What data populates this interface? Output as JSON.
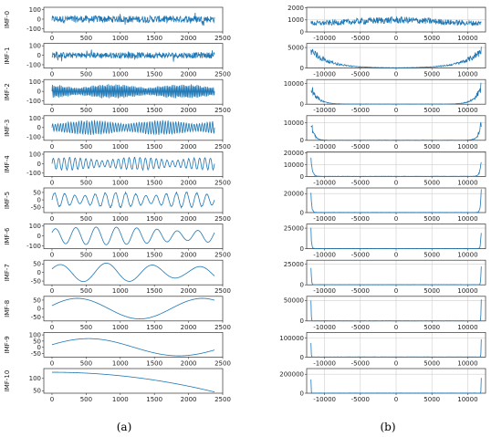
{
  "chart_data": [
    {
      "type": "line",
      "panel_label": "(a)",
      "line_color": "#1f77b4",
      "xticks": [
        "0",
        "500",
        "1000",
        "1500",
        "2000",
        "2500"
      ],
      "x_range": [
        0,
        2380
      ],
      "xlim": [
        -120,
        2500
      ],
      "subplots": [
        {
          "ylabel": "IMF-0",
          "yticks": [
            "100",
            "0",
            "-100"
          ],
          "ylim": [
            -135,
            125
          ],
          "amplitude": 80,
          "pattern": "noise"
        },
        {
          "ylabel": "IMF-1",
          "yticks": [
            "100",
            "0",
            "-100"
          ],
          "ylim": [
            -135,
            125
          ],
          "amplitude": 70,
          "pattern": "noise"
        },
        {
          "ylabel": "IMF-2",
          "yticks": [
            "100",
            "0",
            "-100"
          ],
          "ylim": [
            -135,
            125
          ],
          "amplitude": 80,
          "pattern": "oscillation",
          "periods": 110
        },
        {
          "ylabel": "IMF-3",
          "yticks": [
            "100",
            "0",
            "-100"
          ],
          "ylim": [
            -135,
            125
          ],
          "amplitude": 80,
          "pattern": "oscillation",
          "periods": 62
        },
        {
          "ylabel": "IMF-4",
          "yticks": [
            "100",
            "0",
            "-100"
          ],
          "ylim": [
            -135,
            125
          ],
          "amplitude": 70,
          "pattern": "oscillation",
          "periods": 30
        },
        {
          "ylabel": "IMF-5",
          "yticks": [
            "50",
            "0",
            "-50"
          ],
          "ylim": [
            -85,
            80
          ],
          "amplitude": 55,
          "pattern": "oscillation",
          "periods": 16
        },
        {
          "ylabel": "IMF-6",
          "yticks": [
            "100",
            "0",
            "-100"
          ],
          "ylim": [
            -130,
            120
          ],
          "amplitude": 90,
          "pattern": "slow",
          "periods": 8
        },
        {
          "ylabel": "IMF-7",
          "yticks": [
            "50",
            "0",
            "-50"
          ],
          "ylim": [
            -72,
            72
          ],
          "amplitude": 55,
          "pattern": "slow",
          "periods": 3.5
        },
        {
          "ylabel": "IMF-8",
          "yticks": [
            "50",
            "0",
            "-50"
          ],
          "ylim": [
            -72,
            72
          ],
          "amplitude": 60,
          "pattern": "wave",
          "periods": 1.3
        },
        {
          "ylabel": "IMF-9",
          "yticks": [
            "100",
            "50",
            "0",
            "-50"
          ],
          "ylim": [
            -80,
            120
          ],
          "amplitude": 70,
          "pattern": "wave",
          "periods": 0.9
        },
        {
          "ylabel": "IMF-10",
          "yticks": [
            "100",
            "50"
          ],
          "ylim": [
            40,
            140
          ],
          "pattern": "trend",
          "start": 125,
          "end": 45
        }
      ]
    },
    {
      "type": "line",
      "panel_label": "(b)",
      "line_color": "#1f77b4",
      "xticks": [
        "-10000",
        "-5000",
        "0",
        "5000",
        "10000"
      ],
      "x_range": [
        -11900,
        11900
      ],
      "xlim": [
        -12500,
        12500
      ],
      "grid": true,
      "subplots": [
        {
          "yticks": [
            "2000",
            "1000",
            "0"
          ],
          "ylim": [
            0,
            2050
          ],
          "pattern": "flat",
          "level": 1100
        },
        {
          "yticks": [
            "5000",
            "0"
          ],
          "ylim": [
            0,
            6000
          ],
          "pattern": "peaked",
          "peak": 5500,
          "width": 2500
        },
        {
          "yticks": [
            "10000",
            "0"
          ],
          "ylim": [
            0,
            12000
          ],
          "pattern": "peaked",
          "peak": 11000,
          "width": 900
        },
        {
          "yticks": [
            "10000",
            "0"
          ],
          "ylim": [
            0,
            14000
          ],
          "pattern": "peaked",
          "peak": 13000,
          "width": 400
        },
        {
          "yticks": [
            "20000",
            "10000",
            "0"
          ],
          "ylim": [
            0,
            21000
          ],
          "pattern": "peaked",
          "peak": 19000,
          "width": 200
        },
        {
          "yticks": [
            "20000",
            "0"
          ],
          "ylim": [
            0,
            26000
          ],
          "pattern": "peaked",
          "peak": 25000,
          "width": 120
        },
        {
          "yticks": [
            "25000",
            "0"
          ],
          "ylim": [
            0,
            30000
          ],
          "pattern": "peaked",
          "peak": 29500,
          "width": 80
        },
        {
          "yticks": [
            "25000",
            "0"
          ],
          "ylim": [
            0,
            30000
          ],
          "pattern": "peaked",
          "peak": 29500,
          "width": 60
        },
        {
          "yticks": [
            "50000",
            "0"
          ],
          "ylim": [
            0,
            60000
          ],
          "pattern": "peaked",
          "peak": 59000,
          "width": 40
        },
        {
          "yticks": [
            "100000",
            "0"
          ],
          "ylim": [
            0,
            130000
          ],
          "pattern": "peaked",
          "peak": 128000,
          "width": 30
        },
        {
          "yticks": [
            "200000",
            "0"
          ],
          "ylim": [
            0,
            260000
          ],
          "pattern": "peaked",
          "peak": 258000,
          "width": 20
        }
      ]
    }
  ]
}
